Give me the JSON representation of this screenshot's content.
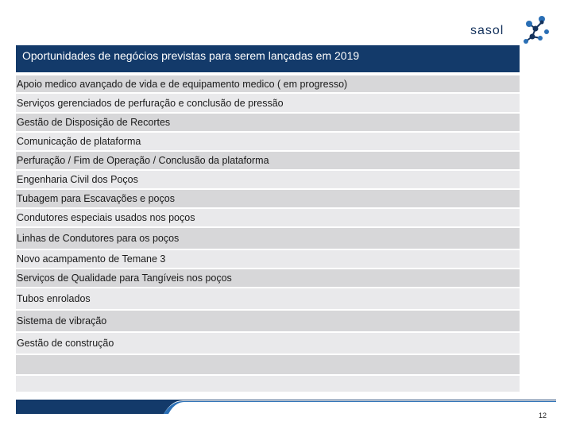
{
  "brand": {
    "logo_text": "sasol",
    "logo_icon": "sasol-molecule-icon",
    "colors": {
      "navy": "#133a6a",
      "blue": "#2a6fb5",
      "row_dark": "#d7d7d9",
      "row_light": "#e9e9eb"
    }
  },
  "slide": {
    "title": "Oportunidades de negócios previstas para serem lançadas em 2019",
    "page_number": "12"
  },
  "rows": [
    "Apoio medico avançado de vida e de equipamento medico ( em progresso)",
    "Serviços gerenciados de perfuração e conclusão de pressão",
    "Gestão de Disposição de Recortes",
    "Comunicação de plataforma",
    "Perfuração / Fim de Operação / Conclusão da plataforma",
    "Engenharia Civil dos Poços",
    " Tubagem para Escavações e poços",
    "Condutores especiais usados nos poços",
    "Linhas de Condutores para os poços",
    "Novo acampamento de Temane 3",
    "Serviços de Qualidade  para Tangíveis nos poços",
    "Tubos enrolados",
    "Sistema de vibração",
    "Gestão de construção",
    "",
    ""
  ]
}
